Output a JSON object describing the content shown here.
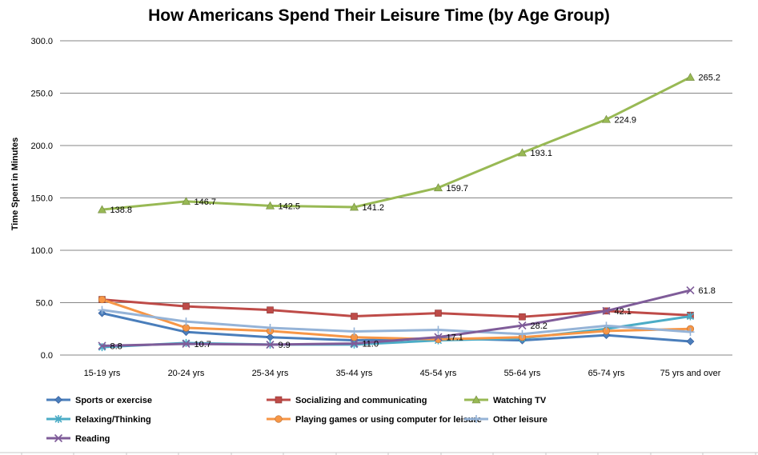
{
  "chart_data": {
    "type": "line",
    "title": "How Americans Spend Their Leisure Time (by Age Group)",
    "xlabel": "",
    "ylabel": "Time Spent in Minutes",
    "ylim": [
      0,
      300
    ],
    "yticks": [
      0,
      50,
      100,
      150,
      200,
      250,
      300
    ],
    "ytick_labels": [
      "0.0",
      "50.0",
      "100.0",
      "150.0",
      "200.0",
      "250.0",
      "300.0"
    ],
    "grid": true,
    "legend_position": "bottom",
    "categories": [
      "15-19 yrs",
      "20-24 yrs",
      "25-34 yrs",
      "35-44 yrs",
      "45-54 yrs",
      "55-64 yrs",
      "65-74 yrs",
      "75 yrs and over"
    ],
    "series": [
      {
        "name": "Sports or exercise",
        "color": "#4A7EBB",
        "marker": "diamond",
        "values": [
          40.0,
          22.0,
          17.0,
          14.0,
          16.0,
          14.0,
          19.0,
          13.0
        ],
        "labels": []
      },
      {
        "name": "Socializing  and communicating",
        "color": "#BE4B48",
        "marker": "square",
        "values": [
          53.0,
          46.5,
          43.0,
          37.0,
          40.0,
          36.5,
          42.1,
          38.0
        ],
        "labels": [
          null,
          null,
          null,
          null,
          null,
          null,
          "42.1",
          null
        ]
      },
      {
        "name": "Watching TV",
        "color": "#98B954",
        "marker": "triangle",
        "values": [
          138.8,
          146.7,
          142.5,
          141.2,
          159.7,
          193.1,
          224.9,
          265.2
        ],
        "labels": [
          "138.8",
          "146.7",
          "142.5",
          "141.2",
          "159.7",
          "193.1",
          "224.9",
          "265.2"
        ]
      },
      {
        "name": "Relaxing/Thinking",
        "color": "#4BACC6",
        "marker": "star",
        "values": [
          7.5,
          11.5,
          10.0,
          10.0,
          14.0,
          16.0,
          25.0,
          37.0
        ],
        "labels": []
      },
      {
        "name": "Playing games or using computer for leisure",
        "color": "#F79646",
        "marker": "circle",
        "values": [
          53.0,
          26.0,
          23.0,
          17.0,
          15.0,
          17.0,
          23.0,
          25.0
        ],
        "labels": []
      },
      {
        "name": "Other leisure",
        "color": "#95B3D7",
        "marker": "plus",
        "values": [
          43.0,
          32.0,
          26.0,
          22.5,
          24.0,
          20.0,
          28.0,
          22.0
        ],
        "labels": []
      },
      {
        "name": "Reading",
        "color": "#7F5C99",
        "marker": "x",
        "values": [
          8.8,
          10.7,
          9.9,
          11.0,
          17.1,
          28.2,
          42.1,
          61.8
        ],
        "labels": [
          "8.8",
          "10.7",
          "9.9",
          "11.0",
          "17.1",
          "28.2",
          null,
          "61.8"
        ]
      }
    ]
  }
}
